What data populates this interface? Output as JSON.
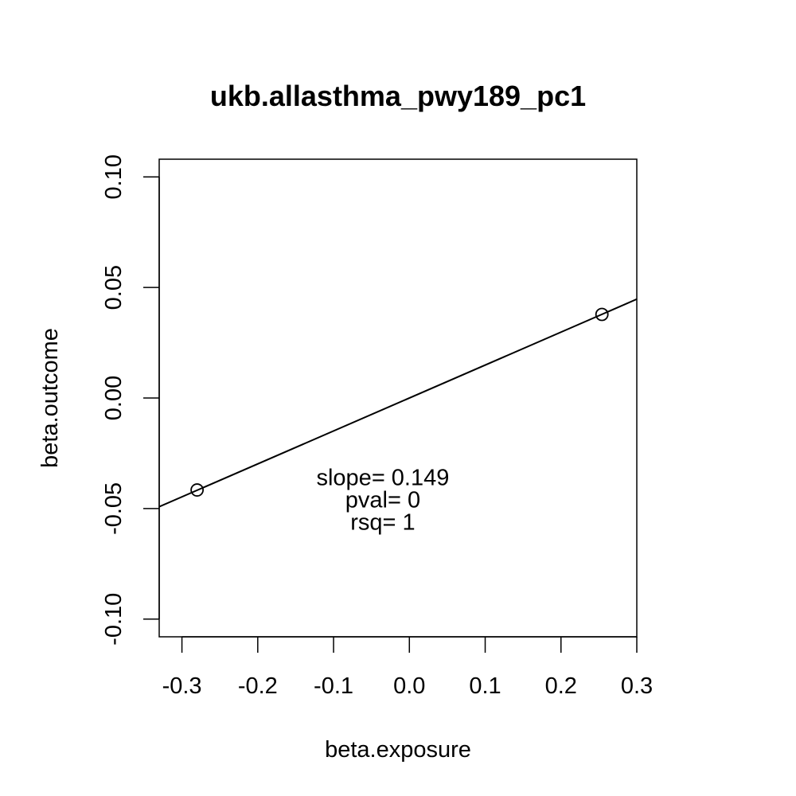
{
  "chart_data": {
    "type": "scatter",
    "title": "ukb.allasthma_pwy189_pc1",
    "xlabel": "beta.exposure",
    "ylabel": "beta.outcome",
    "xlim": [
      -0.33,
      0.3
    ],
    "ylim": [
      -0.108,
      0.108
    ],
    "x_ticks": [
      -0.3,
      -0.2,
      -0.1,
      0.0,
      0.1,
      0.2,
      0.3
    ],
    "x_tick_labels": [
      "-0.3",
      "-0.2",
      "-0.1",
      "0.0",
      "0.1",
      "0.2",
      "0.3"
    ],
    "y_ticks": [
      -0.1,
      -0.05,
      0.0,
      0.05,
      0.1
    ],
    "y_tick_labels": [
      "-0.10",
      "-0.05",
      "0.00",
      "0.05",
      "0.10"
    ],
    "points": [
      {
        "x": -0.28,
        "y": -0.0416
      },
      {
        "x": 0.254,
        "y": 0.0378
      }
    ],
    "regression_line": {
      "slope": 0.149,
      "intercept": 0.0
    },
    "annotations": [
      "slope= 0.149",
      "pval= 0",
      "rsq= 1"
    ],
    "annotation_anchor": {
      "x": -0.035,
      "y": -0.0395
    },
    "grid": false,
    "legend": "none",
    "color": "#000000"
  }
}
